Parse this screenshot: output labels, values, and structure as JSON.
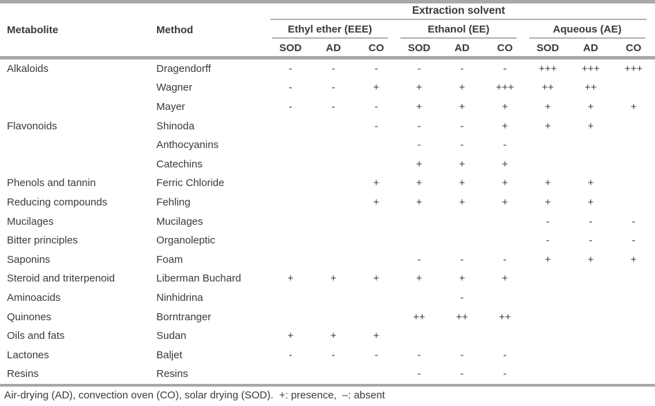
{
  "table": {
    "header": {
      "extraction_solvent": "Extraction solvent",
      "metabolite": "Metabolite",
      "method": "Method",
      "groups": [
        {
          "label": "Ethyl ether (EEE)"
        },
        {
          "label": "Ethanol (EE)"
        },
        {
          "label": "Aqueous (AE)"
        }
      ],
      "subcolumns": [
        "SOD",
        "AD",
        "CO"
      ]
    },
    "rows": [
      {
        "metabolite": "Alkaloids",
        "method": "Dragendorff",
        "values": [
          "-",
          "-",
          "-",
          "-",
          "-",
          "-",
          "+++",
          "+++",
          "+++"
        ]
      },
      {
        "metabolite": "",
        "method": "Wagner",
        "values": [
          "-",
          "-",
          "+",
          "+",
          "+",
          "+++",
          "++",
          "++",
          ""
        ]
      },
      {
        "metabolite": "",
        "method": "Mayer",
        "values": [
          "-",
          "-",
          "-",
          "+",
          "+",
          "+",
          "+",
          "+",
          "+"
        ]
      },
      {
        "metabolite": "Flavonoids",
        "method": "Shinoda",
        "values": [
          "",
          "",
          "-",
          "-",
          "-",
          "+",
          "+",
          "+",
          ""
        ]
      },
      {
        "metabolite": "",
        "method": "Anthocyanins",
        "values": [
          "",
          "",
          "",
          "-",
          "-",
          "-",
          "",
          "",
          ""
        ]
      },
      {
        "metabolite": "",
        "method": "Catechins",
        "values": [
          "",
          "",
          "",
          "+",
          "+",
          "+",
          "",
          "",
          ""
        ]
      },
      {
        "metabolite": "Phenols and tannin",
        "method": "Ferric Chloride",
        "values": [
          "",
          "",
          "+",
          "+",
          "+",
          "+",
          "+",
          "+",
          ""
        ]
      },
      {
        "metabolite": "Reducing compounds",
        "method": "Fehling",
        "values": [
          "",
          "",
          "+",
          "+",
          "+",
          "+",
          "+",
          "+",
          ""
        ]
      },
      {
        "metabolite": "Mucilages",
        "method": "Mucilages",
        "values": [
          "",
          "",
          "",
          "",
          "",
          "",
          "-",
          "-",
          "-"
        ]
      },
      {
        "metabolite": "Bitter principles",
        "method": "Organoleptic",
        "values": [
          "",
          "",
          "",
          "",
          "",
          "",
          "-",
          "-",
          "-"
        ]
      },
      {
        "metabolite": "Saponins",
        "method": "Foam",
        "values": [
          "",
          "",
          "",
          "-",
          "-",
          "-",
          "+",
          "+",
          "+"
        ]
      },
      {
        "metabolite": "Steroid and triterpenoid",
        "method": "Liberman Buchard",
        "values": [
          "+",
          "+",
          "+",
          "+",
          "+",
          "+",
          "",
          "",
          ""
        ]
      },
      {
        "metabolite": "Aminoacids",
        "method": "Ninhidrina",
        "values": [
          "",
          "",
          "",
          "",
          "-",
          "",
          "",
          "",
          ""
        ]
      },
      {
        "metabolite": "Quinones",
        "method": "Borntranger",
        "values": [
          "",
          "",
          "",
          "++",
          "++",
          "++",
          "",
          "",
          ""
        ]
      },
      {
        "metabolite": "Oils and fats",
        "method": "Sudan",
        "values": [
          "+",
          "+",
          "+",
          "",
          "",
          "",
          "",
          "",
          ""
        ]
      },
      {
        "metabolite": "Lactones",
        "method": "Baljet",
        "values": [
          "-",
          "-",
          "-",
          "-",
          "-",
          "-",
          "",
          "",
          ""
        ]
      },
      {
        "metabolite": "Resins",
        "method": "Resins",
        "values": [
          "",
          "",
          "",
          "-",
          "-",
          "-",
          "",
          "",
          ""
        ]
      }
    ],
    "footnote": "Air-drying (AD), convection oven (CO), solar drying (SOD).  +: presence,  –: absent"
  }
}
